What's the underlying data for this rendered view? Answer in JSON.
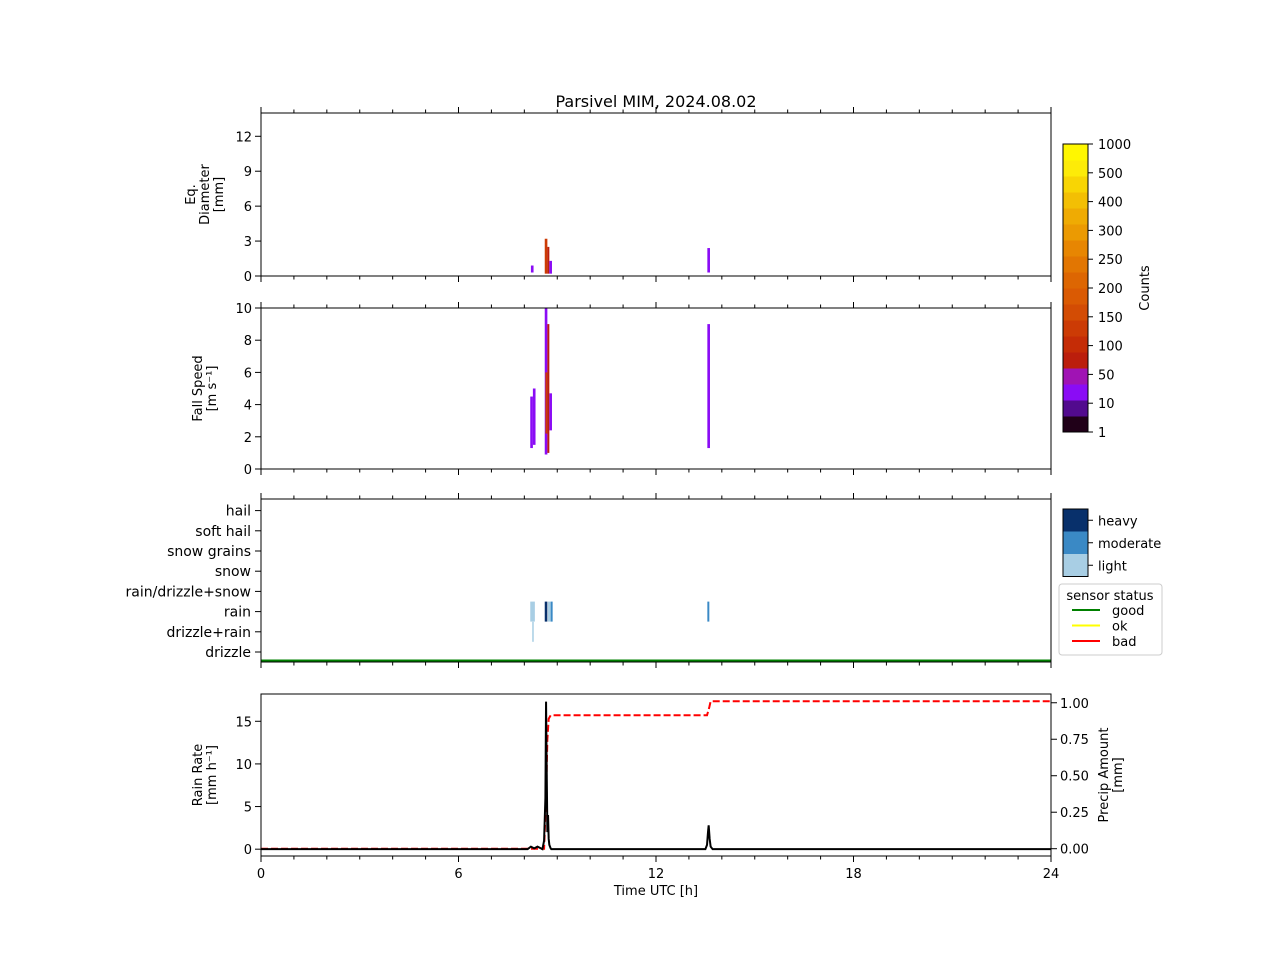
{
  "title": "Parsivel MIM, 2024.08.02",
  "chart_data": [
    {
      "id": "diameter",
      "type": "heatmap",
      "ylabel_lines": [
        "Eq.",
        "Diameter",
        "[mm]"
      ],
      "xlim": [
        0,
        24
      ],
      "ylim": [
        0,
        14
      ],
      "yticks": [
        0,
        3,
        6,
        9,
        12
      ],
      "cells": [
        {
          "t0": 8.2,
          "t1": 8.28,
          "y0": 0.3,
          "y1": 0.9,
          "count": 10
        },
        {
          "t0": 8.62,
          "t1": 8.7,
          "y0": 0.2,
          "y1": 3.2,
          "count": 100
        },
        {
          "t0": 8.7,
          "t1": 8.76,
          "y0": 0.2,
          "y1": 2.5,
          "count": 50
        },
        {
          "t0": 8.76,
          "t1": 8.84,
          "y0": 0.2,
          "y1": 1.3,
          "count": 10
        },
        {
          "t0": 13.56,
          "t1": 13.64,
          "y0": 0.3,
          "y1": 2.4,
          "count": 10
        }
      ]
    },
    {
      "id": "fall_speed",
      "type": "heatmap",
      "ylabel_lines": [
        "Fall Speed",
        "[m s⁻¹]"
      ],
      "xlim": [
        0,
        24
      ],
      "ylim": [
        0,
        10
      ],
      "yticks": [
        0,
        2,
        4,
        6,
        8,
        10
      ],
      "cells": [
        {
          "t0": 8.18,
          "t1": 8.26,
          "y0": 1.3,
          "y1": 4.5,
          "count": 10
        },
        {
          "t0": 8.26,
          "t1": 8.34,
          "y0": 1.5,
          "y1": 5.0,
          "count": 10
        },
        {
          "t0": 8.62,
          "t1": 8.7,
          "y0": 0.9,
          "y1": 10.0,
          "count": 10
        },
        {
          "t0": 8.64,
          "t1": 8.7,
          "y0": 2.2,
          "y1": 6.0,
          "count": 100
        },
        {
          "t0": 8.7,
          "t1": 8.76,
          "y0": 1.0,
          "y1": 9.0,
          "count": 50
        },
        {
          "t0": 8.76,
          "t1": 8.84,
          "y0": 2.4,
          "y1": 4.7,
          "count": 10
        },
        {
          "t0": 13.56,
          "t1": 13.64,
          "y0": 1.3,
          "y1": 9.0,
          "count": 10
        }
      ]
    },
    {
      "id": "weather_type",
      "type": "heatmap",
      "categories": [
        "drizzle",
        "drizzle+rain",
        "rain",
        "rain/drizzle+snow",
        "snow",
        "snow grains",
        "soft hail",
        "hail"
      ],
      "xlim": [
        0,
        24
      ],
      "cells": [
        {
          "t0": 8.18,
          "t1": 8.32,
          "category": "rain",
          "intensity": "light"
        },
        {
          "t0": 8.24,
          "t1": 8.26,
          "category": "drizzle+rain",
          "intensity": "light"
        },
        {
          "t0": 8.62,
          "t1": 8.7,
          "category": "rain",
          "intensity": "heavy"
        },
        {
          "t0": 8.72,
          "t1": 8.8,
          "category": "rain",
          "intensity": "light"
        },
        {
          "t0": 8.8,
          "t1": 8.86,
          "category": "rain",
          "intensity": "moderate"
        },
        {
          "t0": 13.56,
          "t1": 13.62,
          "category": "rain",
          "intensity": "moderate"
        }
      ],
      "sensor_status": [
        {
          "t0": 0,
          "t1": 24,
          "status": "good"
        }
      ]
    },
    {
      "id": "rain",
      "type": "line",
      "ylabel_lines": [
        "Rain Rate",
        "[mm h⁻¹]"
      ],
      "y2label_lines": [
        "Precip Amount",
        "[mm]"
      ],
      "xlabel": "Time UTC [h]",
      "xlim": [
        0,
        24
      ],
      "xticks": [
        0,
        6,
        12,
        18,
        24
      ],
      "ylim": [
        -0.8,
        18.2
      ],
      "yticks": [
        0,
        5,
        10,
        15
      ],
      "y2lim": [
        -0.05,
        1.06
      ],
      "y2ticks": [
        "0.00",
        "0.25",
        "0.50",
        "0.75",
        "1.00"
      ],
      "series": [
        {
          "id": "rain_rate",
          "x": [
            0,
            8.1,
            8.2,
            8.3,
            8.4,
            8.55,
            8.6,
            8.64,
            8.66,
            8.68,
            8.7,
            8.72,
            8.74,
            8.76,
            8.78,
            8.8,
            8.82,
            8.9,
            13.5,
            13.55,
            13.58,
            13.6,
            13.63,
            13.66,
            13.72,
            24
          ],
          "y": [
            0,
            0,
            0.3,
            0.1,
            0.3,
            0,
            1.0,
            6.0,
            17.3,
            9.0,
            2.0,
            4.0,
            1.2,
            0.5,
            0.3,
            0.1,
            0,
            0,
            0,
            0.5,
            2.0,
            2.8,
            1.2,
            0.3,
            0,
            0
          ],
          "color": "#000000"
        },
        {
          "id": "precip_amount",
          "axis": "right",
          "x": [
            0,
            8.6,
            8.66,
            8.7,
            8.74,
            8.8,
            13.55,
            13.62,
            13.66,
            24
          ],
          "y": [
            0,
            0,
            0.35,
            0.75,
            0.89,
            0.914,
            0.914,
            0.97,
            1.01,
            1.01
          ],
          "color": "#ff0000"
        }
      ]
    }
  ],
  "colorbar_counts": {
    "label": "Counts",
    "tick_labels": [
      "1",
      "10",
      "50",
      "100",
      "150",
      "200",
      "250",
      "300",
      "400",
      "500",
      "1000"
    ],
    "colors": [
      "#200018",
      "#520a8e",
      "#8a0cf5",
      "#a013b4",
      "#bb1e0c",
      "#c52c06",
      "#cc3b05",
      "#d34c04",
      "#da5a03",
      "#dd6602",
      "#e27602",
      "#e78602",
      "#eb9a02",
      "#efab03",
      "#f3bf04",
      "#f8d504",
      "#fdeb08",
      "#fff700"
    ]
  },
  "colorbar_intensity": {
    "levels": [
      {
        "label": "heavy",
        "color": "#08306b"
      },
      {
        "label": "moderate",
        "color": "#3a89c5"
      },
      {
        "label": "light",
        "color": "#a8cee4"
      }
    ]
  },
  "legend_sensor": {
    "title": "sensor status",
    "entries": [
      {
        "label": "good",
        "color": "#008000"
      },
      {
        "label": "ok",
        "color": "#ffff00"
      },
      {
        "label": "bad",
        "color": "#ff0000"
      }
    ]
  }
}
